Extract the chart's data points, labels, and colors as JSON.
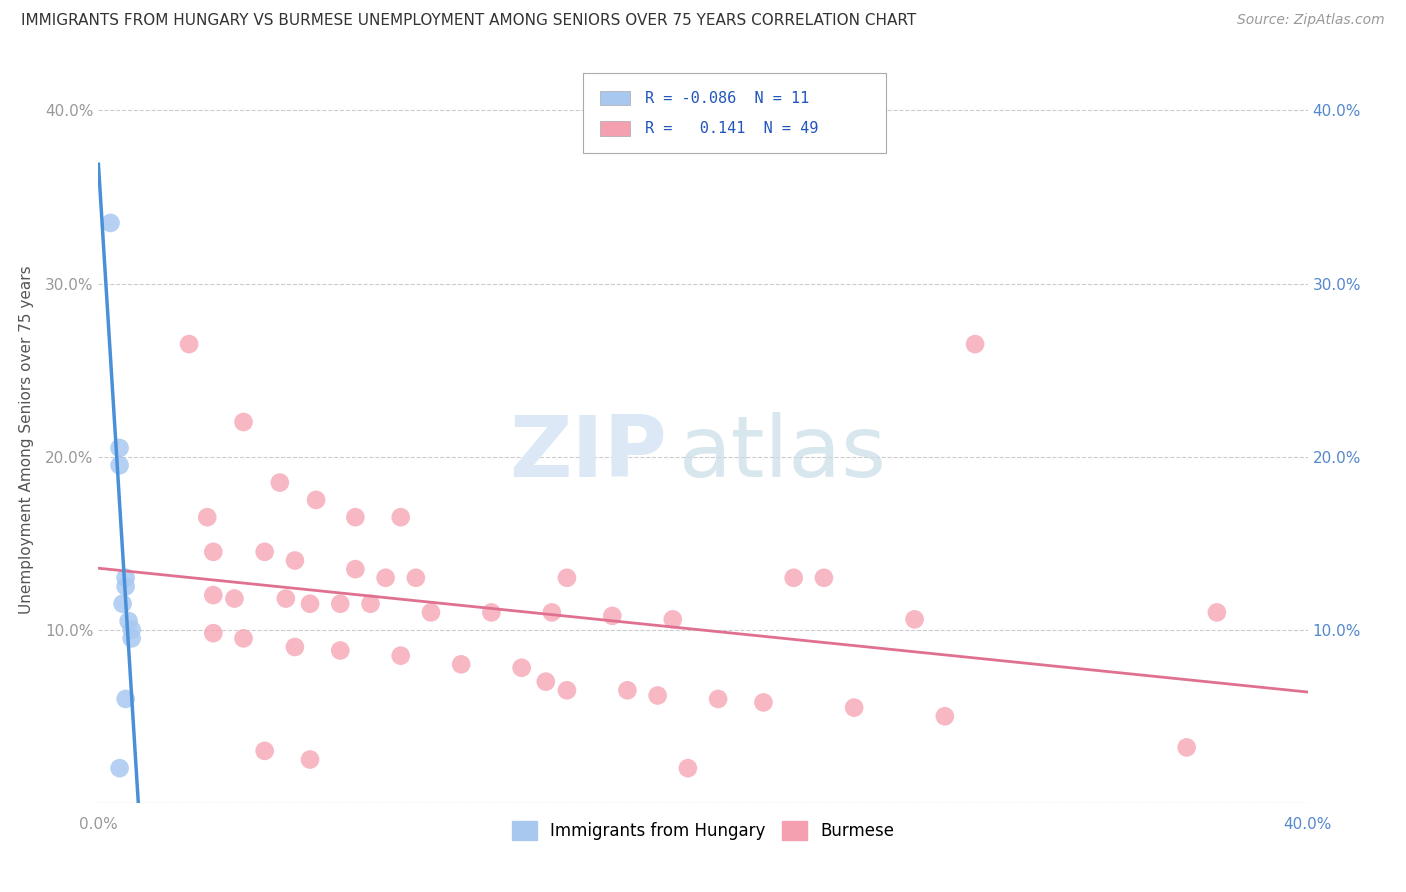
{
  "title": "IMMIGRANTS FROM HUNGARY VS BURMESE UNEMPLOYMENT AMONG SENIORS OVER 75 YEARS CORRELATION CHART",
  "source": "Source: ZipAtlas.com",
  "ylabel": "Unemployment Among Seniors over 75 years",
  "xlim": [
    0.0,
    0.4
  ],
  "ylim": [
    0.0,
    0.42
  ],
  "legend_hungary_R": "-0.086",
  "legend_hungary_N": "11",
  "legend_burmese_R": "0.141",
  "legend_burmese_N": "49",
  "hungary_color": "#a8c8f0",
  "burmese_color": "#f5a0b0",
  "hungary_line_color": "#4a90d9",
  "burmese_line_color": "#e07090",
  "hungary_scatter": [
    [
      0.004,
      0.335
    ],
    [
      0.007,
      0.205
    ],
    [
      0.007,
      0.195
    ],
    [
      0.009,
      0.13
    ],
    [
      0.009,
      0.125
    ],
    [
      0.008,
      0.115
    ],
    [
      0.01,
      0.105
    ],
    [
      0.011,
      0.1
    ],
    [
      0.011,
      0.095
    ],
    [
      0.009,
      0.06
    ],
    [
      0.007,
      0.02
    ]
  ],
  "burmese_scatter": [
    [
      0.03,
      0.265
    ],
    [
      0.048,
      0.22
    ],
    [
      0.06,
      0.185
    ],
    [
      0.072,
      0.175
    ],
    [
      0.036,
      0.165
    ],
    [
      0.085,
      0.165
    ],
    [
      0.1,
      0.165
    ],
    [
      0.29,
      0.265
    ],
    [
      0.038,
      0.145
    ],
    [
      0.055,
      0.145
    ],
    [
      0.065,
      0.14
    ],
    [
      0.085,
      0.135
    ],
    [
      0.095,
      0.13
    ],
    [
      0.105,
      0.13
    ],
    [
      0.155,
      0.13
    ],
    [
      0.23,
      0.13
    ],
    [
      0.24,
      0.13
    ],
    [
      0.038,
      0.12
    ],
    [
      0.045,
      0.118
    ],
    [
      0.062,
      0.118
    ],
    [
      0.07,
      0.115
    ],
    [
      0.08,
      0.115
    ],
    [
      0.09,
      0.115
    ],
    [
      0.11,
      0.11
    ],
    [
      0.13,
      0.11
    ],
    [
      0.15,
      0.11
    ],
    [
      0.17,
      0.108
    ],
    [
      0.19,
      0.106
    ],
    [
      0.27,
      0.106
    ],
    [
      0.37,
      0.11
    ],
    [
      0.038,
      0.098
    ],
    [
      0.048,
      0.095
    ],
    [
      0.065,
      0.09
    ],
    [
      0.08,
      0.088
    ],
    [
      0.1,
      0.085
    ],
    [
      0.12,
      0.08
    ],
    [
      0.14,
      0.078
    ],
    [
      0.148,
      0.07
    ],
    [
      0.155,
      0.065
    ],
    [
      0.175,
      0.065
    ],
    [
      0.185,
      0.062
    ],
    [
      0.205,
      0.06
    ],
    [
      0.22,
      0.058
    ],
    [
      0.25,
      0.055
    ],
    [
      0.28,
      0.05
    ],
    [
      0.055,
      0.03
    ],
    [
      0.07,
      0.025
    ],
    [
      0.36,
      0.032
    ],
    [
      0.195,
      0.02
    ]
  ],
  "watermark_zip": "ZIP",
  "watermark_atlas": "atlas",
  "dpi": 100,
  "figsize": [
    14.06,
    8.92
  ]
}
